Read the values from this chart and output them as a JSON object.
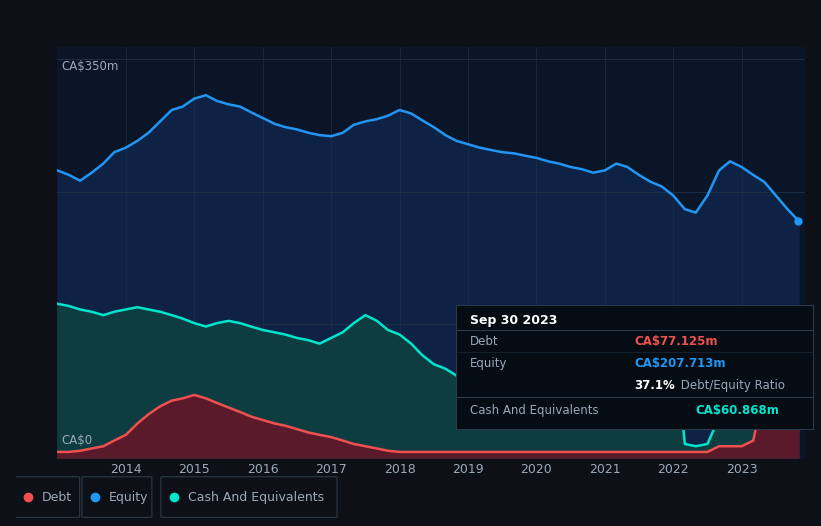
{
  "background_color": "#0d1117",
  "plot_bg_color": "#0a1628",
  "equity_color": "#2196f3",
  "debt_color": "#f05050",
  "cash_color": "#00e5cc",
  "equity_fill": "#0d2244",
  "debt_fill": "#5a1a2a",
  "cash_fill": "#0d3d40",
  "grid_color": "#1a2f45",
  "text_color": "#9aa8b8",
  "tooltip_bg": "#050c14",
  "ylabel": "CA$350m",
  "y0label": "CA$0",
  "title": "Sep 30 2023",
  "debt_label": "CA$77.125m",
  "equity_label": "CA$207.713m",
  "ratio_pct": "37.1%",
  "ratio_text": " Debt/Equity Ratio",
  "cash_label": "CA$60.868m",
  "years": [
    2013.0,
    2013.17,
    2013.33,
    2013.5,
    2013.67,
    2013.83,
    2014.0,
    2014.17,
    2014.33,
    2014.5,
    2014.67,
    2014.83,
    2015.0,
    2015.17,
    2015.33,
    2015.5,
    2015.67,
    2015.83,
    2016.0,
    2016.17,
    2016.33,
    2016.5,
    2016.67,
    2016.83,
    2017.0,
    2017.17,
    2017.33,
    2017.5,
    2017.67,
    2017.83,
    2018.0,
    2018.17,
    2018.33,
    2018.5,
    2018.67,
    2018.83,
    2019.0,
    2019.17,
    2019.33,
    2019.5,
    2019.67,
    2019.83,
    2020.0,
    2020.17,
    2020.33,
    2020.5,
    2020.67,
    2020.83,
    2021.0,
    2021.17,
    2021.33,
    2021.5,
    2021.67,
    2021.83,
    2022.0,
    2022.17,
    2022.33,
    2022.5,
    2022.67,
    2022.83,
    2023.0,
    2023.17,
    2023.33,
    2023.5,
    2023.67,
    2023.83
  ],
  "equity": [
    252,
    248,
    243,
    250,
    258,
    268,
    272,
    278,
    285,
    295,
    305,
    308,
    315,
    318,
    313,
    310,
    308,
    303,
    298,
    293,
    290,
    288,
    285,
    283,
    282,
    285,
    292,
    295,
    297,
    300,
    305,
    302,
    296,
    290,
    283,
    278,
    275,
    272,
    270,
    268,
    267,
    265,
    263,
    260,
    258,
    255,
    253,
    250,
    252,
    258,
    255,
    248,
    242,
    238,
    230,
    218,
    215,
    230,
    252,
    260,
    255,
    248,
    242,
    230,
    218,
    208
  ],
  "debt": [
    5,
    5,
    6,
    8,
    10,
    15,
    20,
    30,
    38,
    45,
    50,
    52,
    55,
    52,
    48,
    44,
    40,
    36,
    33,
    30,
    28,
    25,
    22,
    20,
    18,
    15,
    12,
    10,
    8,
    6,
    5,
    5,
    5,
    5,
    5,
    5,
    5,
    5,
    5,
    5,
    5,
    5,
    5,
    5,
    5,
    5,
    5,
    5,
    5,
    5,
    5,
    5,
    5,
    5,
    5,
    5,
    5,
    5,
    10,
    10,
    10,
    15,
    60,
    90,
    85,
    77
  ],
  "cash": [
    135,
    133,
    130,
    128,
    125,
    128,
    130,
    132,
    130,
    128,
    125,
    122,
    118,
    115,
    118,
    120,
    118,
    115,
    112,
    110,
    108,
    105,
    103,
    100,
    105,
    110,
    118,
    125,
    120,
    112,
    108,
    100,
    90,
    82,
    78,
    72,
    68,
    72,
    78,
    82,
    88,
    92,
    95,
    98,
    100,
    105,
    110,
    115,
    120,
    125,
    130,
    128,
    122,
    118,
    115,
    12,
    10,
    12,
    35,
    55,
    65,
    72,
    75,
    72,
    65,
    61
  ],
  "xlim_min": 2013.0,
  "xlim_max": 2023.92,
  "ylim_min": 0,
  "ylim_max": 360,
  "xticks": [
    2014,
    2015,
    2016,
    2017,
    2018,
    2019,
    2020,
    2021,
    2022,
    2023
  ],
  "xticklabels": [
    "2014",
    "2015",
    "2016",
    "2017",
    "2018",
    "2019",
    "2020",
    "2021",
    "2022",
    "2023"
  ]
}
